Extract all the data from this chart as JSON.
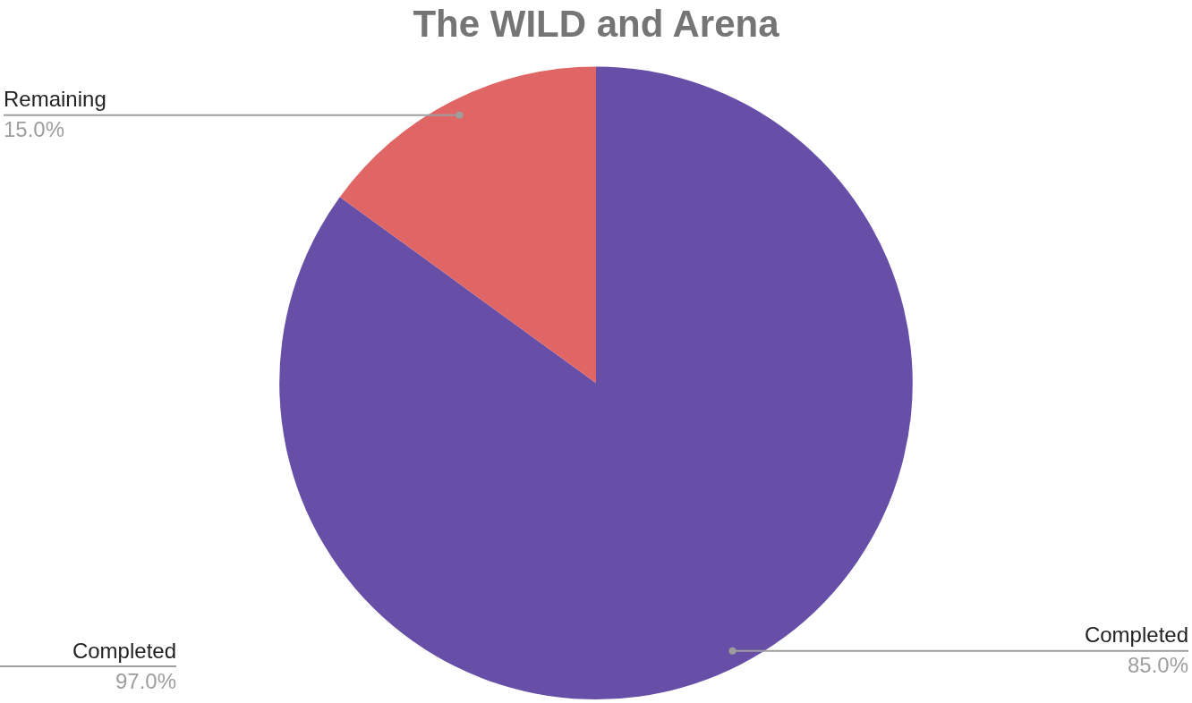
{
  "chart_data": {
    "type": "pie",
    "title": "The WILD and Arena",
    "categories": [
      "Completed",
      "Remaining"
    ],
    "values": [
      85,
      15
    ],
    "colors": [
      "#674ea7",
      "#e06666"
    ],
    "value_labels": [
      "85.0%",
      "15.0%"
    ],
    "legend": false,
    "annotations": [
      "Completed",
      "97.0%"
    ]
  }
}
